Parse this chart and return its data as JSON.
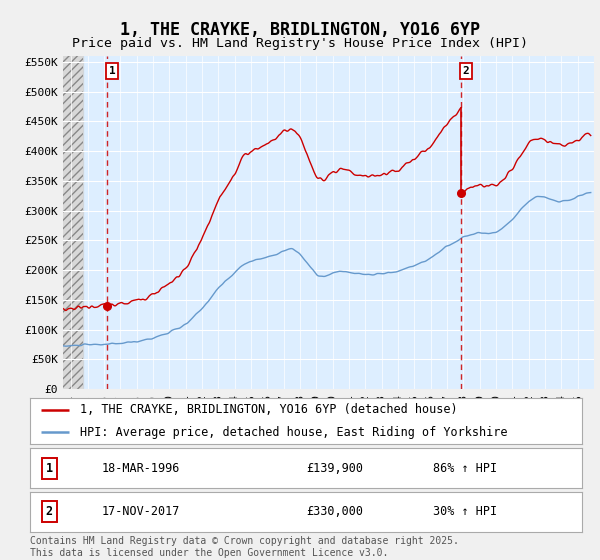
{
  "title": "1, THE CRAYKE, BRIDLINGTON, YO16 6YP",
  "subtitle": "Price paid vs. HM Land Registry's House Price Index (HPI)",
  "legend_line1": "1, THE CRAYKE, BRIDLINGTON, YO16 6YP (detached house)",
  "legend_line2": "HPI: Average price, detached house, East Riding of Yorkshire",
  "annotation1_label": "1",
  "annotation1_date": "18-MAR-1996",
  "annotation1_price": "£139,900",
  "annotation1_hpi": "86% ↑ HPI",
  "annotation1_year": 1996.21,
  "annotation1_value": 139900,
  "annotation2_label": "2",
  "annotation2_date": "17-NOV-2017",
  "annotation2_price": "£330,000",
  "annotation2_hpi": "30% ↑ HPI",
  "annotation2_year": 2017.88,
  "annotation2_value": 330000,
  "ylim_min": 0,
  "ylim_max": 560000,
  "ytick_values": [
    0,
    50000,
    100000,
    150000,
    200000,
    250000,
    300000,
    350000,
    400000,
    450000,
    500000,
    550000
  ],
  "ytick_labels": [
    "£0",
    "£50K",
    "£100K",
    "£150K",
    "£200K",
    "£250K",
    "£300K",
    "£350K",
    "£400K",
    "£450K",
    "£500K",
    "£550K"
  ],
  "xmin": 1993.5,
  "xmax": 2026.0,
  "red_color": "#cc0000",
  "blue_color": "#6699cc",
  "bg_plot_color": "#ddeeff",
  "bg_outer_color": "#f0f0f0",
  "grid_color": "#ffffff",
  "dashed_line_color": "#cc0000",
  "footer_text": "Contains HM Land Registry data © Crown copyright and database right 2025.\nThis data is licensed under the Open Government Licence v3.0.",
  "title_fontsize": 12,
  "subtitle_fontsize": 9.5,
  "tick_fontsize": 8,
  "legend_fontsize": 8.5,
  "footer_fontsize": 7
}
